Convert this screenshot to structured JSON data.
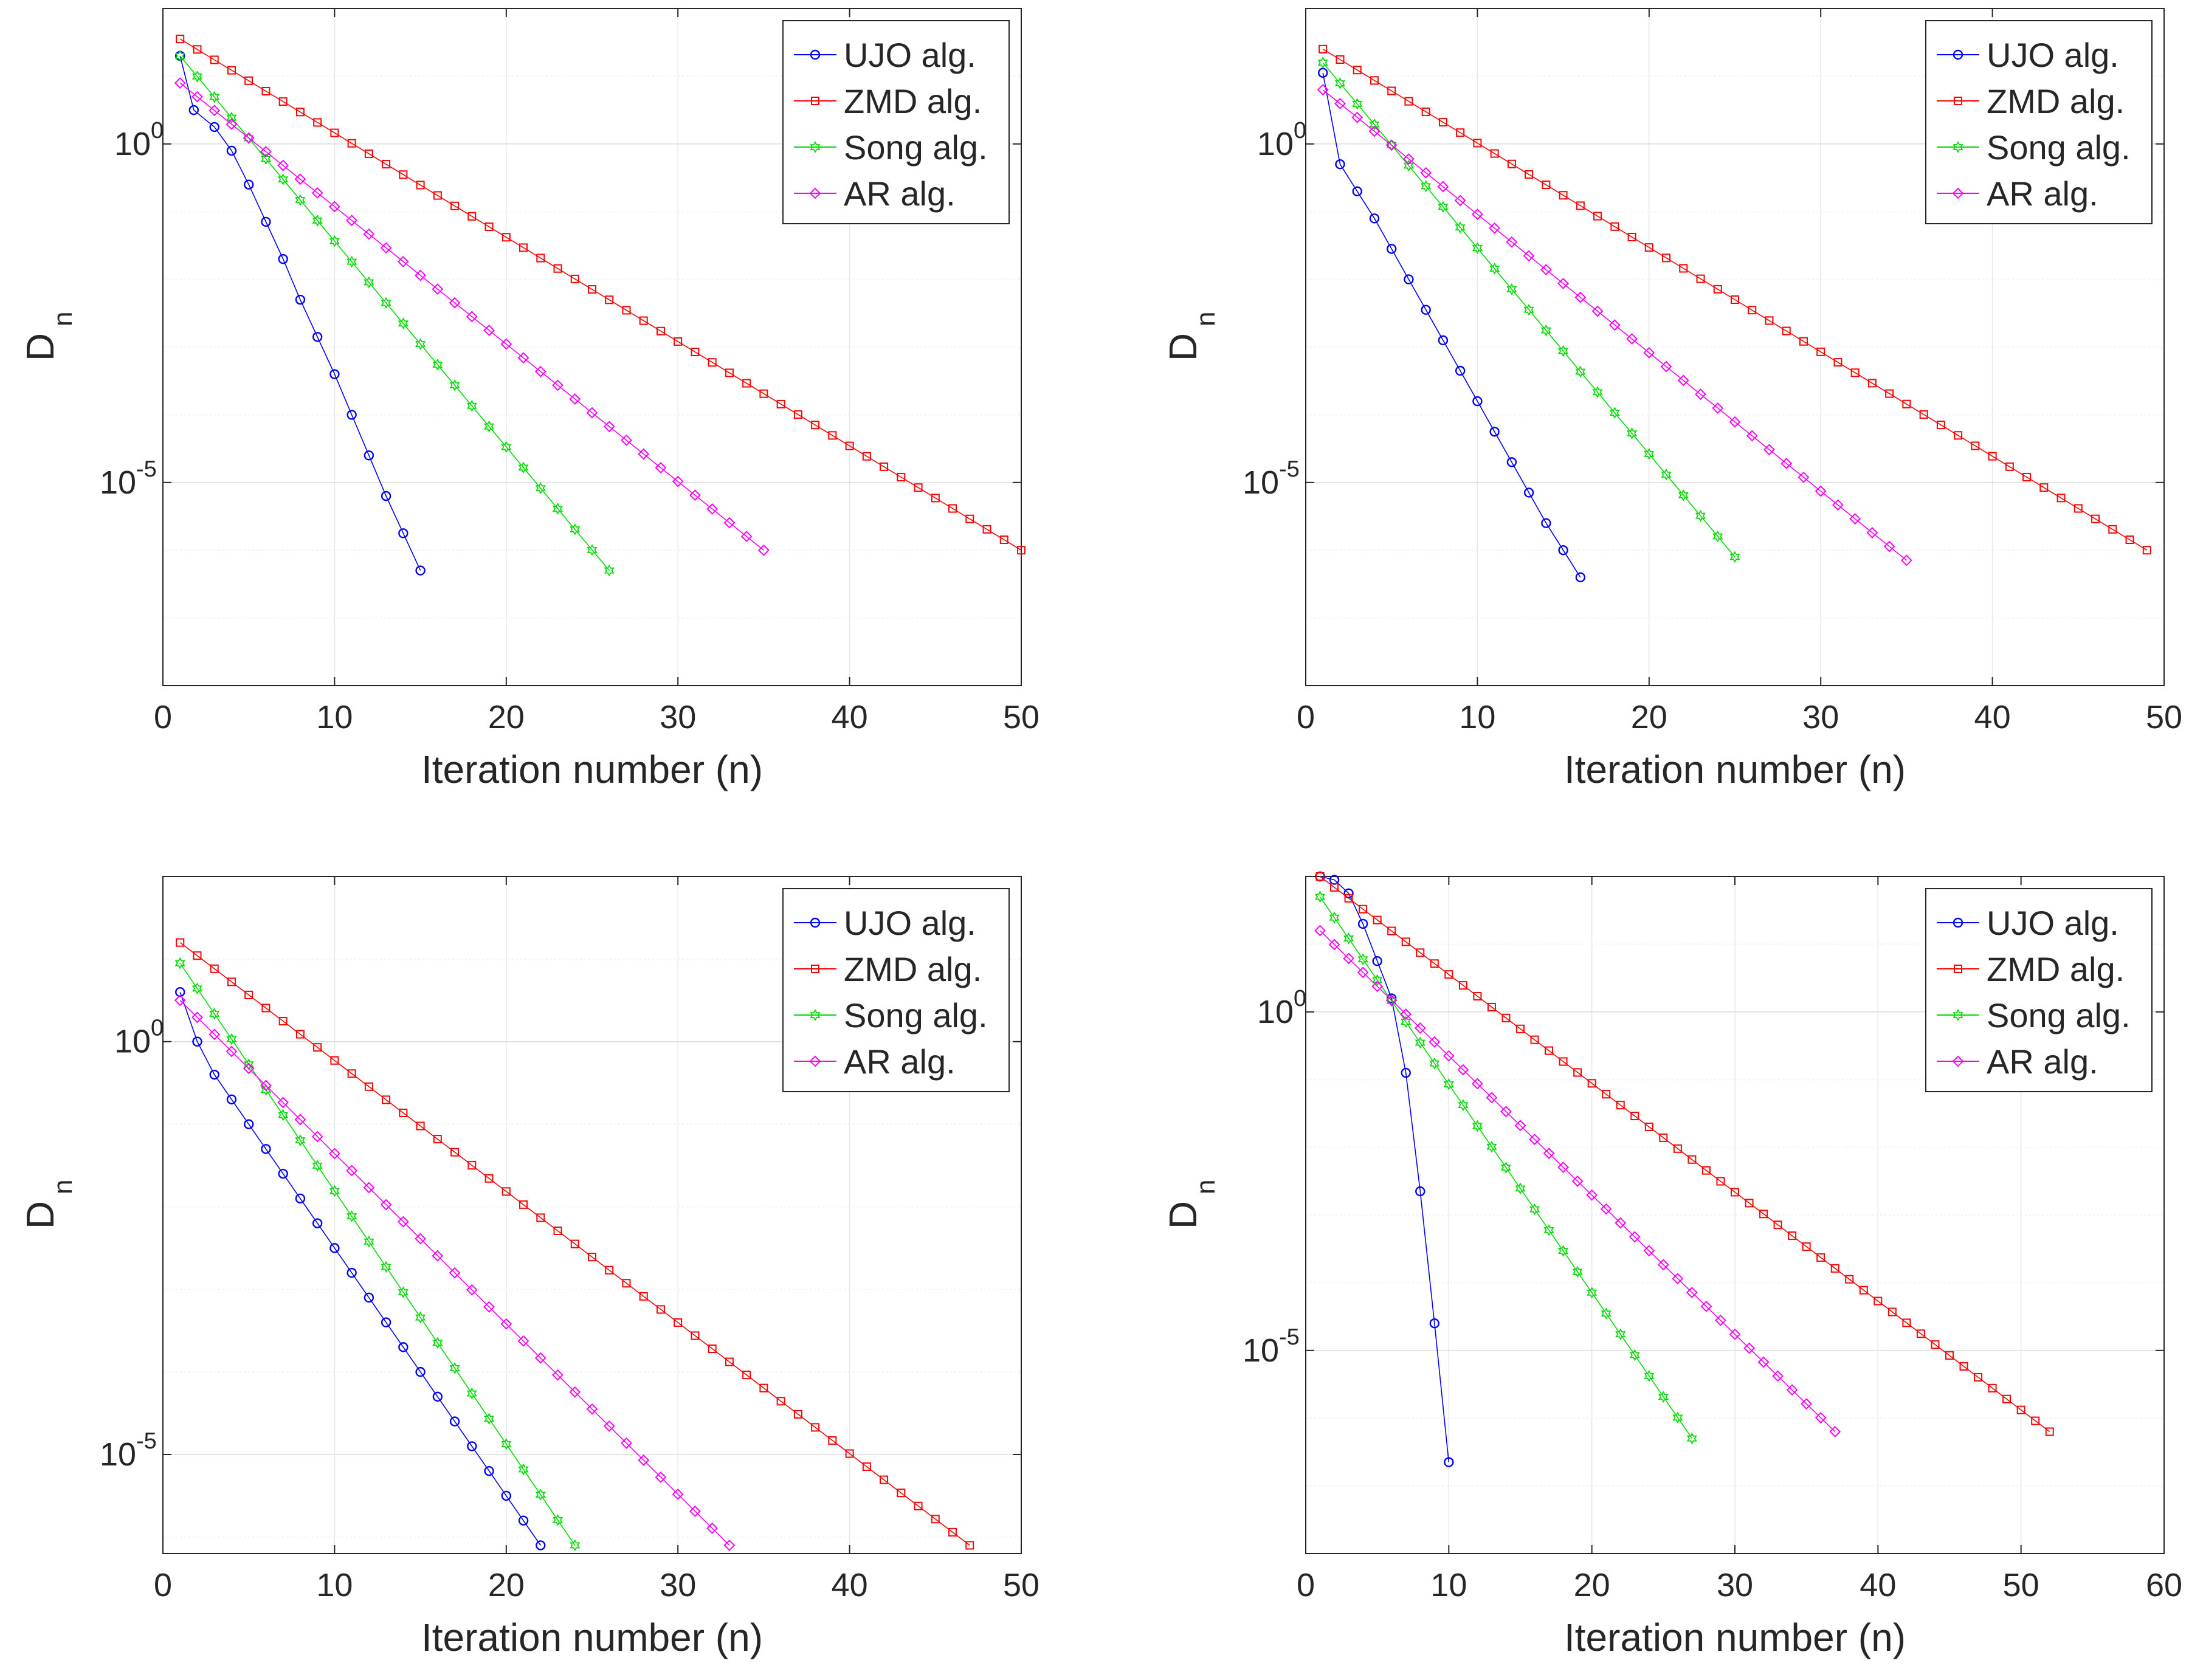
{
  "figure": {
    "panel_count": 4
  },
  "chart_data": [
    {
      "type": "line",
      "xlabel": "Iteration number (n)",
      "ylabel": "D",
      "ylabel_subscript": "n",
      "yscale": "log",
      "xlim": [
        0,
        50
      ],
      "ylim_log10": [
        -8,
        2
      ],
      "xticks": [
        "0",
        "10",
        "20",
        "30",
        "40",
        "50"
      ],
      "xtick_values": [
        0,
        10,
        20,
        30,
        40,
        50
      ],
      "yticks": [
        {
          "value_log10": 0,
          "base": "10",
          "exp": "0"
        },
        {
          "value_log10": -5,
          "base": "10",
          "exp": "-5"
        }
      ],
      "grid": true,
      "legend_position": "top-right",
      "series": [
        {
          "name": "UJO alg.",
          "color": "#0000ff",
          "marker": "circle",
          "n": [
            1,
            15
          ],
          "log10_D": [
            1.3,
            -6.3
          ],
          "x_values": [
            1,
            1.8,
            3,
            4,
            5,
            6,
            7,
            8,
            9,
            10,
            11,
            12,
            13,
            14,
            15
          ],
          "y_log10": [
            1.3,
            0.5,
            0.25,
            -0.1,
            -0.6,
            -1.15,
            -1.7,
            -2.3,
            -2.85,
            -3.4,
            -4.0,
            -4.6,
            -5.2,
            -5.75,
            -6.3
          ]
        },
        {
          "name": "ZMD alg.",
          "color": "#ff0000",
          "marker": "square",
          "n": [
            1,
            50
          ],
          "log10_D": [
            1.55,
            -6.0
          ]
        },
        {
          "name": "Song alg.",
          "color": "#00dd00",
          "marker": "hexagram",
          "n": [
            1,
            26
          ],
          "log10_D": [
            1.3,
            -6.3
          ]
        },
        {
          "name": "AR alg.",
          "color": "#ff00ff",
          "marker": "diamond",
          "n": [
            1,
            35
          ],
          "log10_D": [
            0.9,
            -6.0
          ]
        }
      ]
    },
    {
      "type": "line",
      "xlabel": "Iteration number (n)",
      "ylabel": "D",
      "ylabel_subscript": "n",
      "yscale": "log",
      "xlim": [
        0,
        50
      ],
      "ylim_log10": [
        -8,
        2
      ],
      "xticks": [
        "0",
        "10",
        "20",
        "30",
        "40",
        "50"
      ],
      "xtick_values": [
        0,
        10,
        20,
        30,
        40,
        50
      ],
      "yticks": [
        {
          "value_log10": 0,
          "base": "10",
          "exp": "0"
        },
        {
          "value_log10": -5,
          "base": "10",
          "exp": "-5"
        }
      ],
      "grid": true,
      "legend_position": "top-right",
      "series": [
        {
          "name": "UJO alg.",
          "color": "#0000ff",
          "marker": "circle",
          "n": [
            1,
            16
          ],
          "x_values": [
            1,
            2,
            3,
            4,
            5,
            6,
            7,
            8,
            9,
            10,
            11,
            12,
            13,
            14,
            15,
            16
          ],
          "y_log10": [
            1.05,
            -0.3,
            -0.7,
            -1.1,
            -1.55,
            -2.0,
            -2.45,
            -2.9,
            -3.35,
            -3.8,
            -4.25,
            -4.7,
            -5.15,
            -5.6,
            -6.0,
            -6.4
          ]
        },
        {
          "name": "ZMD alg.",
          "color": "#ff0000",
          "marker": "square",
          "n": [
            1,
            49
          ],
          "log10_D": [
            1.4,
            -6.0
          ]
        },
        {
          "name": "Song alg.",
          "color": "#00dd00",
          "marker": "hexagram",
          "n": [
            1,
            25
          ],
          "log10_D": [
            1.2,
            -6.1
          ]
        },
        {
          "name": "AR alg.",
          "color": "#ff00ff",
          "marker": "diamond",
          "n": [
            1,
            35
          ],
          "log10_D": [
            0.8,
            -6.15
          ]
        }
      ]
    },
    {
      "type": "line",
      "xlabel": "Iteration number (n)",
      "ylabel": "D",
      "ylabel_subscript": "n",
      "yscale": "log",
      "xlim": [
        0,
        50
      ],
      "ylim_log10": [
        -6.2,
        2.0
      ],
      "xticks": [
        "0",
        "10",
        "20",
        "30",
        "40",
        "50"
      ],
      "xtick_values": [
        0,
        10,
        20,
        30,
        40,
        50
      ],
      "yticks": [
        {
          "value_log10": 0,
          "base": "10",
          "exp": "0"
        },
        {
          "value_log10": -5,
          "base": "10",
          "exp": "-5"
        }
      ],
      "grid": true,
      "legend_position": "top-right",
      "series": [
        {
          "name": "UJO alg.",
          "color": "#0000ff",
          "marker": "circle",
          "n": [
            1,
            22
          ],
          "x_values": [
            1,
            2,
            3,
            4,
            5,
            6,
            7,
            8,
            9,
            10,
            11,
            12,
            13,
            14,
            15,
            16,
            17,
            18,
            19,
            20,
            21,
            22
          ],
          "y_log10": [
            0.6,
            0.0,
            -0.4,
            -0.7,
            -1.0,
            -1.3,
            -1.6,
            -1.9,
            -2.2,
            -2.5,
            -2.8,
            -3.1,
            -3.4,
            -3.7,
            -4.0,
            -4.3,
            -4.6,
            -4.9,
            -5.2,
            -5.5,
            -5.8,
            -6.1
          ]
        },
        {
          "name": "ZMD alg.",
          "color": "#ff0000",
          "marker": "square",
          "n": [
            1,
            47
          ],
          "log10_D": [
            1.2,
            -6.1
          ]
        },
        {
          "name": "Song alg.",
          "color": "#00dd00",
          "marker": "hexagram",
          "n": [
            1,
            24
          ],
          "log10_D": [
            0.95,
            -6.1
          ]
        },
        {
          "name": "AR alg.",
          "color": "#ff00ff",
          "marker": "diamond",
          "n": [
            1,
            33
          ],
          "log10_D": [
            0.5,
            -6.1
          ]
        }
      ]
    },
    {
      "type": "line",
      "xlabel": "Iteration number (n)",
      "ylabel": "D",
      "ylabel_subscript": "n",
      "yscale": "log",
      "xlim": [
        0,
        60
      ],
      "ylim_log10": [
        -8,
        2
      ],
      "xticks": [
        "0",
        "10",
        "20",
        "30",
        "40",
        "50",
        "60"
      ],
      "xtick_values": [
        0,
        10,
        20,
        30,
        40,
        50,
        60
      ],
      "yticks": [
        {
          "value_log10": 0,
          "base": "10",
          "exp": "0"
        },
        {
          "value_log10": -5,
          "base": "10",
          "exp": "-5"
        }
      ],
      "grid": true,
      "legend_position": "top-right",
      "series": [
        {
          "name": "UJO alg.",
          "color": "#0000ff",
          "marker": "circle",
          "n": [
            1,
            10
          ],
          "x_values": [
            1,
            2,
            3,
            4,
            5,
            6,
            7,
            8,
            9,
            10
          ],
          "y_log10": [
            2.0,
            1.95,
            1.75,
            1.3,
            0.75,
            0.2,
            -0.9,
            -2.65,
            -4.6,
            -6.65
          ]
        },
        {
          "name": "ZMD alg.",
          "color": "#ff0000",
          "marker": "square",
          "n": [
            1,
            52
          ],
          "log10_D": [
            2.0,
            -6.2
          ]
        },
        {
          "name": "Song alg.",
          "color": "#00dd00",
          "marker": "hexagram",
          "n": [
            1,
            27
          ],
          "log10_D": [
            1.7,
            -6.3
          ]
        },
        {
          "name": "AR alg.",
          "color": "#ff00ff",
          "marker": "diamond",
          "n": [
            1,
            37
          ],
          "log10_D": [
            1.2,
            -6.2
          ]
        }
      ]
    }
  ]
}
